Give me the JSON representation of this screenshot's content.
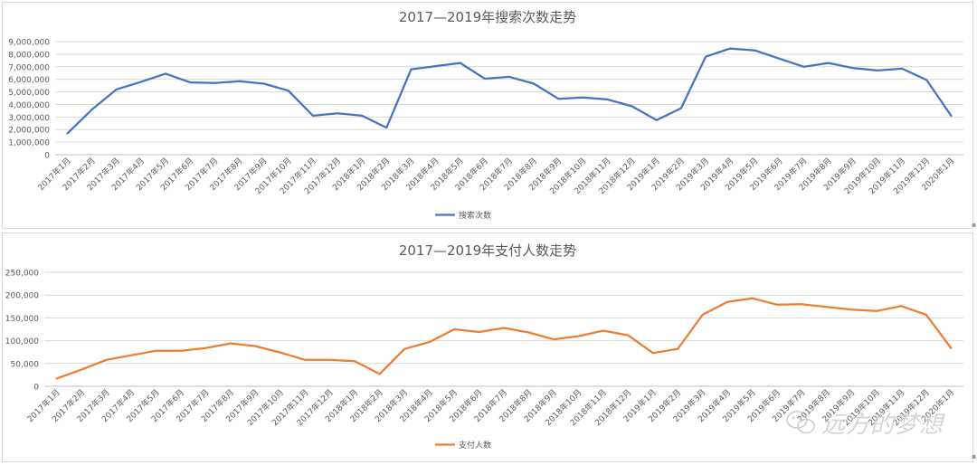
{
  "chart_data": [
    {
      "type": "line",
      "title": "2017—2019年搜索次数走势",
      "color": "#4472c4",
      "ylim": [
        0,
        9000000
      ],
      "yticks": [
        "0",
        "1,000,000",
        "2,000,000",
        "3,000,000",
        "4,000,000",
        "5,000,000",
        "6,000,000",
        "7,000,000",
        "8,000,000",
        "9,000,000"
      ],
      "ytick_values": [
        0,
        1000000,
        2000000,
        3000000,
        4000000,
        5000000,
        6000000,
        7000000,
        8000000,
        9000000
      ],
      "grid": true,
      "legend": "bottom",
      "categories": [
        "2017年1月",
        "2017年2月",
        "2017年3月",
        "2017年4月",
        "2017年5月",
        "2017年6月",
        "2017年7月",
        "2017年8月",
        "2017年9月",
        "2017年10月",
        "2017年11月",
        "2017年12月",
        "2018年1月",
        "2018年2月",
        "2018年3月",
        "2018年4月",
        "2018年5月",
        "2018年6月",
        "2018年7月",
        "2018年8月",
        "2018年9月",
        "2018年10月",
        "2018年11月",
        "2018年12月",
        "2019年1月",
        "2019年2月",
        "2019年3月",
        "2019年4月",
        "2019年5月",
        "2019年6月",
        "2019年7月",
        "2019年8月",
        "2019年9月",
        "2019年10月",
        "2019年11月",
        "2019年12月",
        "2020年1月"
      ],
      "series": [
        {
          "name": "搜索次数",
          "values": [
            1700000,
            3600000,
            5200000,
            5800000,
            6450000,
            5750000,
            5700000,
            5850000,
            5650000,
            5100000,
            3100000,
            3300000,
            3100000,
            2150000,
            6800000,
            7050000,
            7300000,
            6050000,
            6200000,
            5650000,
            4450000,
            4550000,
            4400000,
            3850000,
            2750000,
            3700000,
            7800000,
            8450000,
            8300000,
            7650000,
            7000000,
            7300000,
            6900000,
            6700000,
            6850000,
            5950000,
            3100000
          ]
        }
      ]
    },
    {
      "type": "line",
      "title": "2017—2019年支付人数走势",
      "color": "#ed7d31",
      "ylim": [
        0,
        250000
      ],
      "yticks": [
        "0",
        "50,000",
        "100,000",
        "150,000",
        "200,000",
        "250,000"
      ],
      "ytick_values": [
        0,
        50000,
        100000,
        150000,
        200000,
        250000
      ],
      "grid": true,
      "legend": "bottom",
      "categories": [
        "2017年1月",
        "2017年2月",
        "2017年3月",
        "2017年4月",
        "2017年5月",
        "2017年6月",
        "2017年7月",
        "2017年8月",
        "2017年9月",
        "2017年10月",
        "2017年11月",
        "2017年12月",
        "2018年1月",
        "2018年2月",
        "2018年3月",
        "2018年4月",
        "2018年5月",
        "2018年6月",
        "2018年7月",
        "2018年8月",
        "2018年9月",
        "2018年10月",
        "2018年11月",
        "2018年12月",
        "2019年1月",
        "2019年2月",
        "2019年3月",
        "2019年4月",
        "2019年5月",
        "2019年6月",
        "2019年7月",
        "2019年8月",
        "2019年9月",
        "2019年10月",
        "2019年11月",
        "2019年12月",
        "2020年1月"
      ],
      "series": [
        {
          "name": "支付人数",
          "values": [
            17000,
            37000,
            58000,
            68000,
            78000,
            78000,
            84000,
            94000,
            88000,
            74000,
            58000,
            58000,
            55000,
            27000,
            82000,
            97000,
            125000,
            119000,
            128000,
            118000,
            103000,
            110000,
            122000,
            112000,
            73000,
            82000,
            157000,
            185000,
            193000,
            179000,
            180000,
            174000,
            168000,
            165000,
            176000,
            157000,
            84000
          ]
        }
      ]
    }
  ],
  "watermark": {
    "text": "远方的梦想",
    "icon": "wechat-bubble-icon"
  }
}
